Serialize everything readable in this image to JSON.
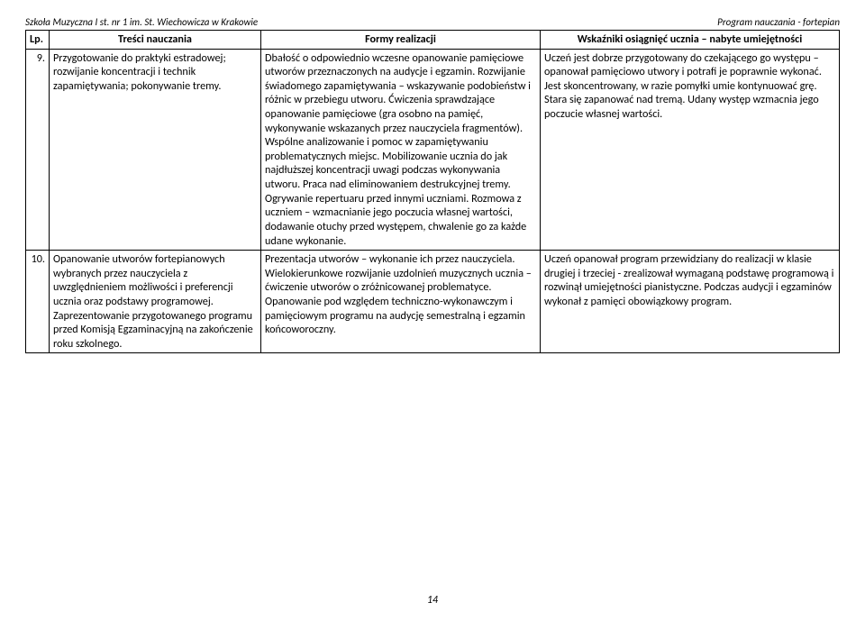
{
  "header": {
    "left": "Szkoła Muzyczna I st. nr 1 im. St. Wiechowicza w Krakowie",
    "right": "Program nauczania - fortepian"
  },
  "columns": {
    "lp": "Lp.",
    "tresci": "Treści nauczania",
    "formy": "Formy realizacji",
    "wskazniki": "Wskaźniki osiągnięć ucznia – nabyte umiejętności"
  },
  "rows": [
    {
      "lp": "9.",
      "tresci": "Przygotowanie do praktyki estradowej; rozwijanie koncentracji i technik zapamiętywania; pokonywanie tremy.",
      "formy": "Dbałość o odpowiednio wczesne opanowanie pamięciowe utworów przeznaczonych na audycje i egzamin. Rozwijanie świadomego zapamiętywania – wskazywanie podobieństw i różnic w przebiegu utworu. Ćwiczenia sprawdzające opanowanie pamięciowe (gra osobno na pamięć, wykonywanie wskazanych przez nauczyciela fragmentów). Wspólne analizowanie i pomoc w zapamiętywaniu problematycznych miejsc. Mobilizowanie ucznia do jak najdłuższej koncentracji uwagi podczas wykonywania utworu. Praca nad eliminowaniem destrukcyjnej tremy. Ogrywanie repertuaru przed innymi uczniami. Rozmowa z uczniem – wzmacnianie jego poczucia własnej wartości, dodawanie otuchy przed występem, chwalenie go za każde udane wykonanie.",
      "wskazniki": "Uczeń jest dobrze przygotowany do czekającego go występu – opanował pamięciowo utwory i potrafi je poprawnie wykonać. Jest skoncentrowany, w razie pomyłki umie kontynuować grę. Stara się zapanować nad tremą. Udany występ wzmacnia jego poczucie własnej wartości."
    },
    {
      "lp": "10.",
      "tresci": "Opanowanie utworów fortepianowych wybranych przez nauczyciela z uwzględnieniem możliwości i preferencji ucznia oraz podstawy programowej. Zaprezentowanie przygotowanego programu przed Komisją Egzaminacyjną na zakończenie roku szkolnego.",
      "formy": "Prezentacja utworów – wykonanie ich przez nauczyciela. Wielokierunkowe rozwijanie uzdolnień muzycznych ucznia – ćwiczenie utworów o zróżnicowanej problematyce. Opanowanie pod względem techniczno-wykonawczym i pamięciowym programu na audycję semestralną i egzamin końcoworoczny.",
      "wskazniki": "Uczeń opanował program przewidziany do realizacji w klasie drugiej i trzeciej - zrealizował wymaganą podstawę programową i rozwinął umiejętności pianistyczne. Podczas audycji i egzaminów wykonał z pamięci obowiązkowy program."
    }
  ],
  "pagenum": "14"
}
